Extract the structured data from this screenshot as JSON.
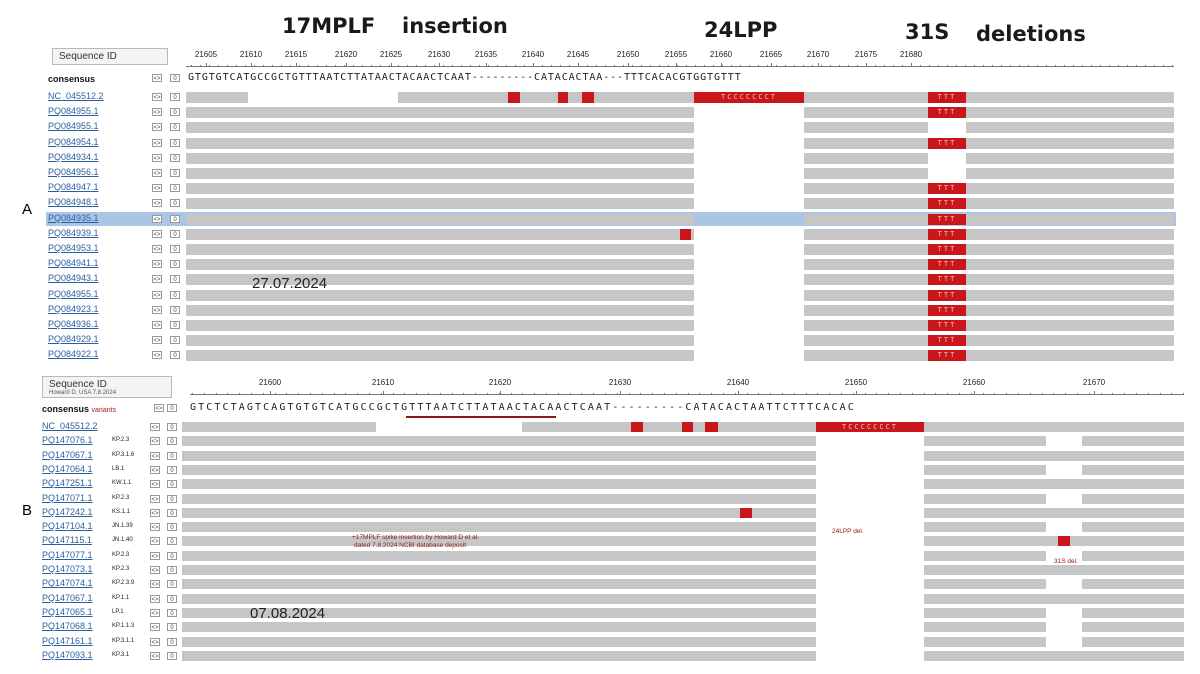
{
  "headlines": {
    "h1": "17MPLF",
    "h2": "insertion",
    "h3": "24LPP",
    "h4": "31S",
    "h5": "deletions"
  },
  "panels": {
    "a": {
      "label": "A",
      "date": "27.07.2024",
      "seq_id_label": "Sequence ID",
      "consensus_label": "consensus",
      "consensus_seq": "GTGTGTCATGCCGCTGTTTAATCTTATAACTACAACTCAAT---------CATACACTAA---TTTCACACGTGGTGTTT",
      "ruler": [
        "21605",
        "21610",
        "21615",
        "21620",
        "21625",
        "21630",
        "21635",
        "21640",
        "21645",
        "21650",
        "21655",
        "21660",
        "21665",
        "21670",
        "21675",
        "21680"
      ],
      "rows": [
        {
          "id": "NC_045512.2",
          "tag": ""
        },
        {
          "id": "PQ084955.1",
          "tag": ""
        },
        {
          "id": "PQ084955.1",
          "tag": ""
        },
        {
          "id": "PQ084954.1",
          "tag": ""
        },
        {
          "id": "PQ084934.1",
          "tag": ""
        },
        {
          "id": "PQ084956.1",
          "tag": ""
        },
        {
          "id": "PQ084947.1",
          "tag": ""
        },
        {
          "id": "PQ084948.1",
          "tag": ""
        },
        {
          "id": "PQ084935.1",
          "tag": ""
        },
        {
          "id": "PQ084939.1",
          "tag": ""
        },
        {
          "id": "PQ084953.1",
          "tag": ""
        },
        {
          "id": "PQ084941.1",
          "tag": ""
        },
        {
          "id": "PQ084943.1",
          "tag": ""
        },
        {
          "id": "PQ084955.1",
          "tag": ""
        },
        {
          "id": "PQ084923.1",
          "tag": ""
        },
        {
          "id": "PQ084936.1",
          "tag": ""
        },
        {
          "id": "PQ084929.1",
          "tag": ""
        },
        {
          "id": "PQ084922.1",
          "tag": ""
        }
      ]
    },
    "b": {
      "label": "B",
      "date": "07.08.2024",
      "seq_id_label": "Sequence ID",
      "seq_id_sub": "Howard D. USA 7.8.2024",
      "consensus_label": "consensus",
      "consensus_variant": "variants",
      "consensus_seq": "GTCTCTAGTCAGTGTGTCATGCCGCTGTTTAATCTTATAACTACAACTCAAT---------CATACACTAATTCTTTCACAC",
      "ruler": [
        "21600",
        "21610",
        "21620",
        "21630",
        "21640",
        "21650",
        "21660",
        "21670"
      ],
      "note_insertion_1": "+17MPLF spike insertion by Howard D et al.",
      "note_insertion_2": "dated 7.8.2024 NCBI database deposit",
      "note_24lpp": "24LPP del.",
      "note_31s": "31S del.",
      "rows": [
        {
          "id": "NC_045512.2",
          "tag": ""
        },
        {
          "id": "PQ147076.1",
          "tag": "KP.2.3"
        },
        {
          "id": "PQ147067.1",
          "tag": "KP.3.1.6"
        },
        {
          "id": "PQ147064.1",
          "tag": "LB.1"
        },
        {
          "id": "PQ147251.1",
          "tag": "KW.1.1"
        },
        {
          "id": "PQ147071.1",
          "tag": "KP.2.3"
        },
        {
          "id": "PQ147242.1",
          "tag": "KS.1.1"
        },
        {
          "id": "PQ147104.1",
          "tag": "JN.1.39"
        },
        {
          "id": "PQ147115.1",
          "tag": "JN.1.40"
        },
        {
          "id": "PQ147077.1",
          "tag": "KP.2.3"
        },
        {
          "id": "PQ147073.1",
          "tag": "KP.2.3"
        },
        {
          "id": "PQ147074.1",
          "tag": "KP.2.3.9"
        },
        {
          "id": "PQ147067.1",
          "tag": "KP.1.1"
        },
        {
          "id": "PQ147065.1",
          "tag": "LP.1"
        },
        {
          "id": "PQ147068.1",
          "tag": "KP.1.1.3"
        },
        {
          "id": "PQ147161.1",
          "tag": "KP.3.1.1"
        },
        {
          "id": "PQ147093.1",
          "tag": "KP.3.1"
        }
      ]
    }
  },
  "controls": {
    "expand": "<>",
    "zero": "0"
  },
  "mutations": {
    "seq": "TCCCCCCCT",
    "three": "TTT"
  },
  "colors": {
    "bar": "#c6c6c6",
    "mutation": "#c8161b",
    "selection": "#8fb3dc",
    "link": "#2c5fa0"
  }
}
